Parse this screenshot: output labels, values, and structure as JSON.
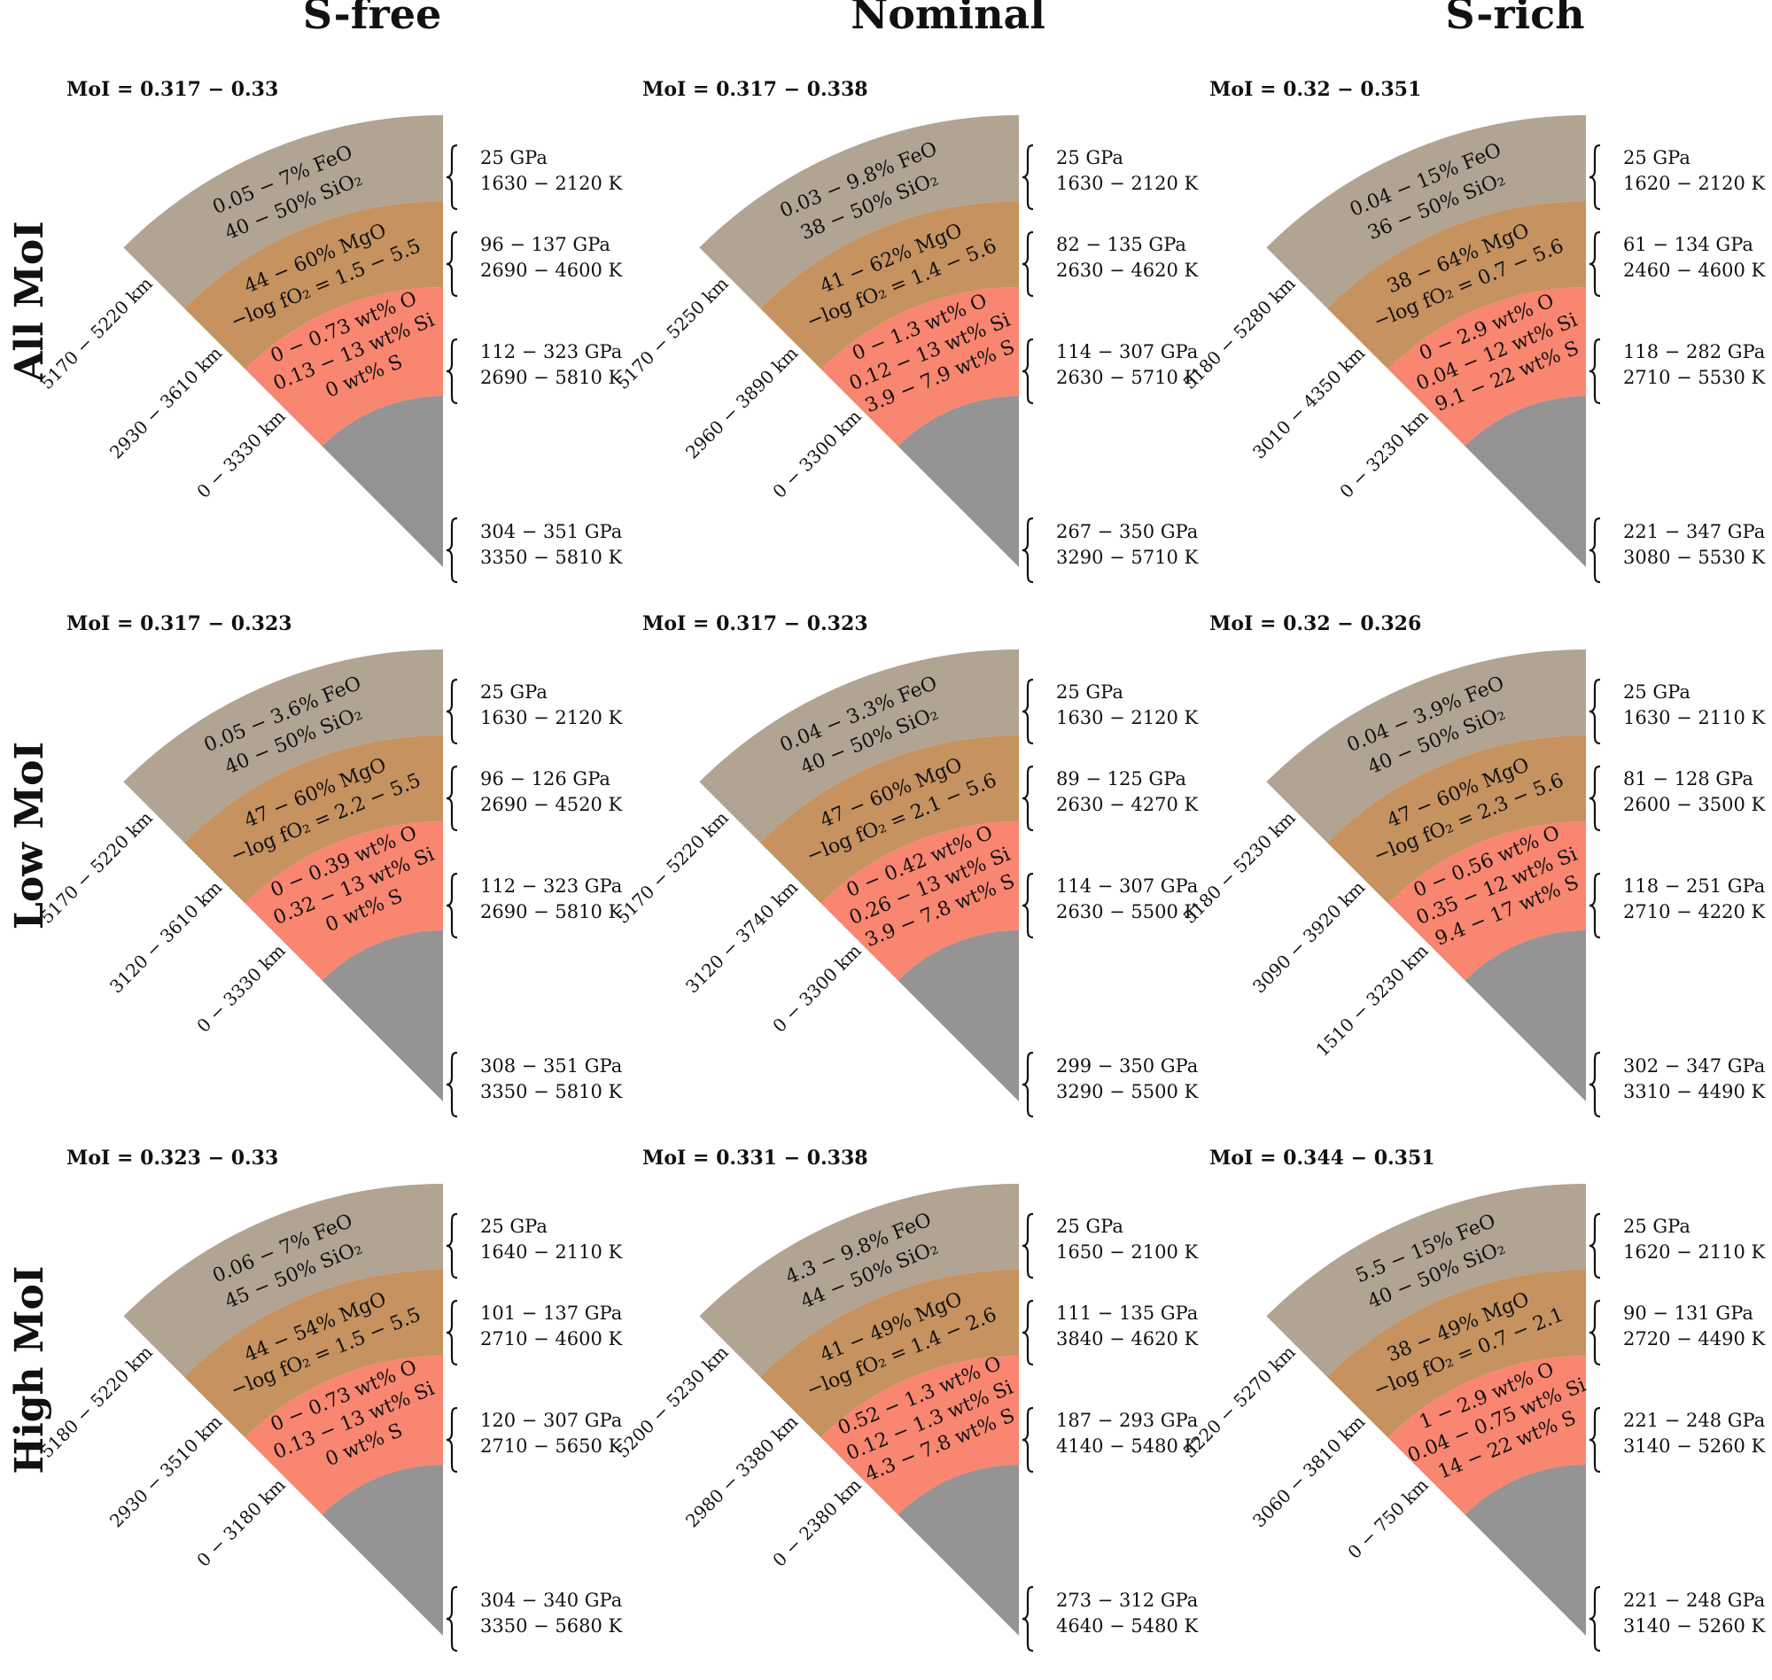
{
  "figure_columns": [
    "S-free",
    "Nominal",
    "S-rich"
  ],
  "figure_rows": [
    "All MoI",
    "Low MoI",
    "High MoI"
  ],
  "colors": {
    "mantle_upper": "#b2a492",
    "mantle_lower": "#c6925f",
    "core_outer": "#f98670",
    "core_inner": "#959393"
  },
  "panels": [
    {
      "moi": "MoI = 0.317 − 0.33",
      "layers": {
        "mantle_upper": [
          "0.05 − 7% FeO",
          "40 − 50% SiO₂"
        ],
        "mantle_lower": [
          "44 − 60% MgO",
          "−log fO₂ = 1.5 − 5.5"
        ],
        "core_outer": [
          "0 − 0.73 wt% O",
          "0.13 − 13 wt% Si",
          "0 wt% S"
        ]
      },
      "radii": [
        "5170 − 5220 km",
        "2930 − 3610 km",
        "0 − 3330 km"
      ],
      "conditions": [
        [
          "25 GPa",
          "1630 − 2120 K"
        ],
        [
          "96 − 137 GPa",
          "2690 − 4600 K"
        ],
        [
          "112 − 323 GPa",
          "2690 − 5810 K"
        ],
        [
          "304 − 351 GPa",
          "3350 − 5810 K"
        ]
      ]
    },
    {
      "moi": "MoI = 0.317 − 0.338",
      "layers": {
        "mantle_upper": [
          "0.03 − 9.8% FeO",
          "38 − 50% SiO₂"
        ],
        "mantle_lower": [
          "41 − 62% MgO",
          "−log fO₂ = 1.4 − 5.6"
        ],
        "core_outer": [
          "0 − 1.3 wt% O",
          "0.12 − 13 wt% Si",
          "3.9 − 7.9 wt% S"
        ]
      },
      "radii": [
        "5170 − 5250 km",
        "2960 − 3890 km",
        "0 − 3300 km"
      ],
      "conditions": [
        [
          "25 GPa",
          "1630 − 2120 K"
        ],
        [
          "82 − 135 GPa",
          "2630 − 4620 K"
        ],
        [
          "114 − 307 GPa",
          "2630 − 5710 K"
        ],
        [
          "267 − 350 GPa",
          "3290 − 5710 K"
        ]
      ]
    },
    {
      "moi": "MoI = 0.32 − 0.351",
      "layers": {
        "mantle_upper": [
          "0.04 − 15% FeO",
          "36 − 50% SiO₂"
        ],
        "mantle_lower": [
          "38 − 64% MgO",
          "−log fO₂ = 0.7 − 5.6"
        ],
        "core_outer": [
          "0 − 2.9 wt% O",
          "0.04 − 12 wt% Si",
          "9.1 − 22 wt% S"
        ]
      },
      "radii": [
        "5180 − 5280 km",
        "3010 − 4350 km",
        "0 − 3230 km"
      ],
      "conditions": [
        [
          "25 GPa",
          "1620 − 2120 K"
        ],
        [
          "61 − 134 GPa",
          "2460 − 4600 K"
        ],
        [
          "118 − 282 GPa",
          "2710 − 5530 K"
        ],
        [
          "221 − 347 GPa",
          "3080 − 5530 K"
        ]
      ]
    },
    {
      "moi": "MoI = 0.317 − 0.323",
      "layers": {
        "mantle_upper": [
          "0.05 − 3.6% FeO",
          "40 − 50% SiO₂"
        ],
        "mantle_lower": [
          "47 − 60% MgO",
          "−log fO₂ = 2.2 − 5.5"
        ],
        "core_outer": [
          "0 − 0.39 wt% O",
          "0.32 − 13 wt% Si",
          "0 wt% S"
        ]
      },
      "radii": [
        "5170 − 5220 km",
        "3120 − 3610 km",
        "0 − 3330 km"
      ],
      "conditions": [
        [
          "25 GPa",
          "1630 − 2120 K"
        ],
        [
          "96 − 126 GPa",
          "2690 − 4520 K"
        ],
        [
          "112 − 323 GPa",
          "2690 − 5810 K"
        ],
        [
          "308 − 351 GPa",
          "3350 − 5810 K"
        ]
      ]
    },
    {
      "moi": "MoI = 0.317 − 0.323",
      "layers": {
        "mantle_upper": [
          "0.04 − 3.3% FeO",
          "40 − 50% SiO₂"
        ],
        "mantle_lower": [
          "47 − 60% MgO",
          "−log fO₂ = 2.1 − 5.6"
        ],
        "core_outer": [
          "0 − 0.42 wt% O",
          "0.26 − 13 wt% Si",
          "3.9 − 7.8 wt% S"
        ]
      },
      "radii": [
        "5170 − 5220 km",
        "3120 − 3740 km",
        "0 − 3300 km"
      ],
      "conditions": [
        [
          "25 GPa",
          "1630 − 2120 K"
        ],
        [
          "89 − 125 GPa",
          "2630 − 4270 K"
        ],
        [
          "114 − 307 GPa",
          "2630 − 5500 K"
        ],
        [
          "299 − 350 GPa",
          "3290 − 5500 K"
        ]
      ]
    },
    {
      "moi": "MoI = 0.32 − 0.326",
      "layers": {
        "mantle_upper": [
          "0.04 − 3.9% FeO",
          "40 − 50% SiO₂"
        ],
        "mantle_lower": [
          "47 − 60% MgO",
          "−log fO₂ = 2.3 − 5.6"
        ],
        "core_outer": [
          "0 − 0.56 wt% O",
          "0.35 − 12 wt% Si",
          "9.4 − 17 wt% S"
        ]
      },
      "radii": [
        "5180 − 5230 km",
        "3090 − 3920 km",
        "1510 − 3230 km"
      ],
      "conditions": [
        [
          "25 GPa",
          "1630 − 2110 K"
        ],
        [
          "81 − 128 GPa",
          "2600 − 3500 K"
        ],
        [
          "118 − 251 GPa",
          "2710 − 4220 K"
        ],
        [
          "302 − 347 GPa",
          "3310 − 4490 K"
        ]
      ]
    },
    {
      "moi": "MoI = 0.323 − 0.33",
      "layers": {
        "mantle_upper": [
          "0.06 − 7% FeO",
          "45 − 50% SiO₂"
        ],
        "mantle_lower": [
          "44 − 54% MgO",
          "−log fO₂ = 1.5 − 5.5"
        ],
        "core_outer": [
          "0 − 0.73 wt% O",
          "0.13 − 13 wt% Si",
          "0 wt% S"
        ]
      },
      "radii": [
        "5180 − 5220 km",
        "2930 − 3510 km",
        "0 − 3180 km"
      ],
      "conditions": [
        [
          "25 GPa",
          "1640 − 2110 K"
        ],
        [
          "101 − 137 GPa",
          "2710 − 4600 K"
        ],
        [
          "120 − 307 GPa",
          "2710 − 5650 K"
        ],
        [
          "304 − 340 GPa",
          "3350 − 5680 K"
        ]
      ]
    },
    {
      "moi": "MoI = 0.331 − 0.338",
      "layers": {
        "mantle_upper": [
          "4.3 − 9.8% FeO",
          "44 − 50% SiO₂"
        ],
        "mantle_lower": [
          "41 − 49% MgO",
          "−log fO₂ = 1.4 − 2.6"
        ],
        "core_outer": [
          "0.52 − 1.3 wt% O",
          "0.12 − 1.3 wt% Si",
          "4.3 − 7.8 wt% S"
        ]
      },
      "radii": [
        "5200 − 5230 km",
        "2980 − 3380 km",
        "0 − 2380 km"
      ],
      "conditions": [
        [
          "25 GPa",
          "1650 − 2100 K"
        ],
        [
          "111 − 135 GPa",
          "3840 − 4620 K"
        ],
        [
          "187 − 293 GPa",
          "4140 − 5480 K"
        ],
        [
          "273 − 312 GPa",
          "4640 − 5480 K"
        ]
      ]
    },
    {
      "moi": "MoI = 0.344 − 0.351",
      "layers": {
        "mantle_upper": [
          "5.5 − 15% FeO",
          "40 − 50% SiO₂"
        ],
        "mantle_lower": [
          "38 − 49% MgO",
          "−log fO₂ = 0.7 − 2.1"
        ],
        "core_outer": [
          "1 − 2.9 wt% O",
          "0.04 − 0.75 wt% Si",
          "14 − 22 wt% S"
        ]
      },
      "radii": [
        "5220 − 5270 km",
        "3060 − 3810 km",
        "0 − 750 km"
      ],
      "conditions": [
        [
          "25 GPa",
          "1620 − 2110 K"
        ],
        [
          "90 − 131 GPa",
          "2720 − 4490 K"
        ],
        [
          "221 − 248 GPa",
          "3140 − 5260 K"
        ],
        [
          "221 − 248 GPa",
          "3140 − 5260 K"
        ]
      ]
    }
  ]
}
